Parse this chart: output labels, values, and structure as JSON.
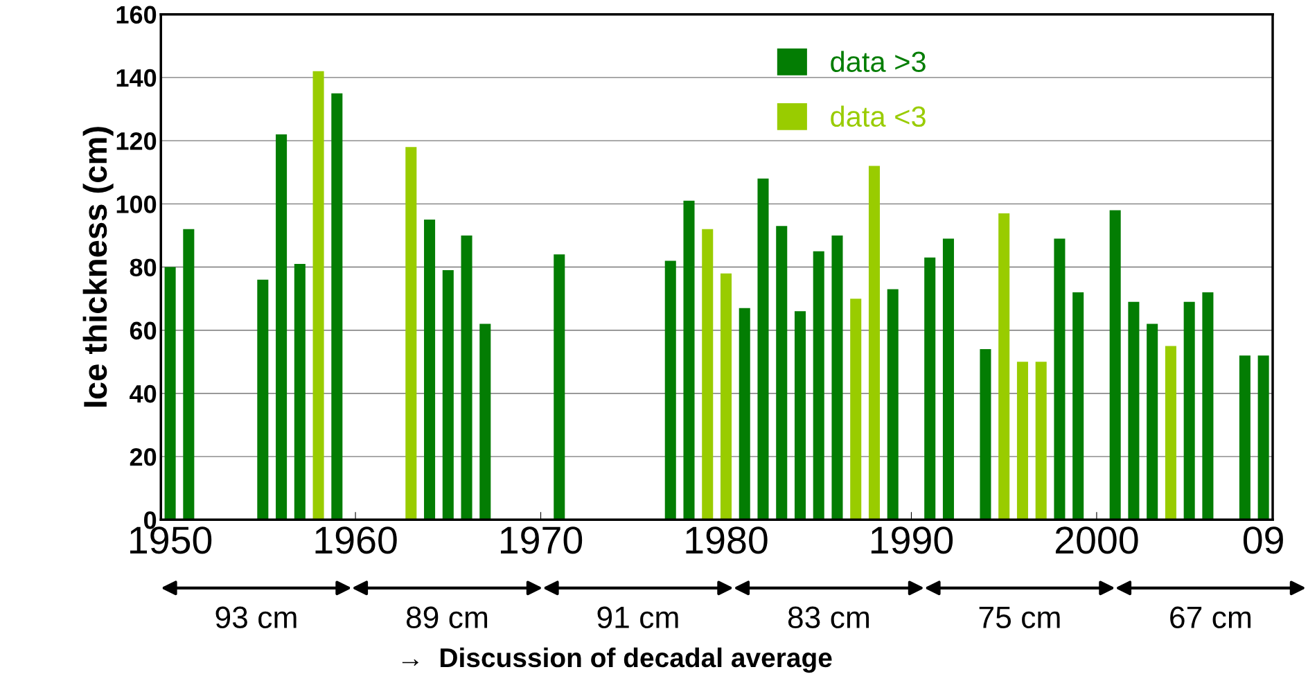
{
  "chart_data": {
    "type": "bar",
    "ylabel": "Ice thickness (cm)",
    "series": [
      {
        "name": "data >3",
        "color": "#037d03",
        "x": [
          1950,
          1951,
          1955,
          1956,
          1957,
          1959,
          1964,
          1965,
          1966,
          1967,
          1971,
          1977,
          1978,
          1981,
          1982,
          1983,
          1984,
          1985,
          1986,
          1989,
          1991,
          1992,
          1994,
          1998,
          1999,
          2001,
          2002,
          2003,
          2005,
          2006,
          2008,
          2009
        ],
        "values": [
          80,
          92,
          76,
          122,
          81,
          135,
          95,
          79,
          90,
          62,
          84,
          82,
          101,
          67,
          108,
          93,
          66,
          85,
          90,
          73,
          83,
          89,
          54,
          89,
          72,
          98,
          69,
          62,
          69,
          72,
          52,
          52
        ]
      },
      {
        "name": "data <3",
        "color": "#99cc00",
        "x": [
          1958,
          1963,
          1979,
          1980,
          1987,
          1988,
          1995,
          1996,
          1997,
          2004
        ],
        "values": [
          142,
          118,
          92,
          78,
          70,
          112,
          97,
          50,
          50,
          55
        ]
      }
    ],
    "xlim": [
      1949.5,
      2009.5
    ],
    "xticks": [
      1950,
      1960,
      1970,
      1980,
      1990,
      2000,
      {
        "value": 2009,
        "label": "09"
      }
    ],
    "ylim": [
      0,
      160
    ],
    "yticks": [
      0,
      20,
      40,
      60,
      80,
      100,
      120,
      140,
      160
    ],
    "grid": "y",
    "legend": "top right",
    "annotations": [
      "93 cm",
      "89 cm",
      "91 cm",
      "83 cm",
      "75 cm",
      "67 cm",
      "→  Discussion of decadal average"
    ]
  }
}
